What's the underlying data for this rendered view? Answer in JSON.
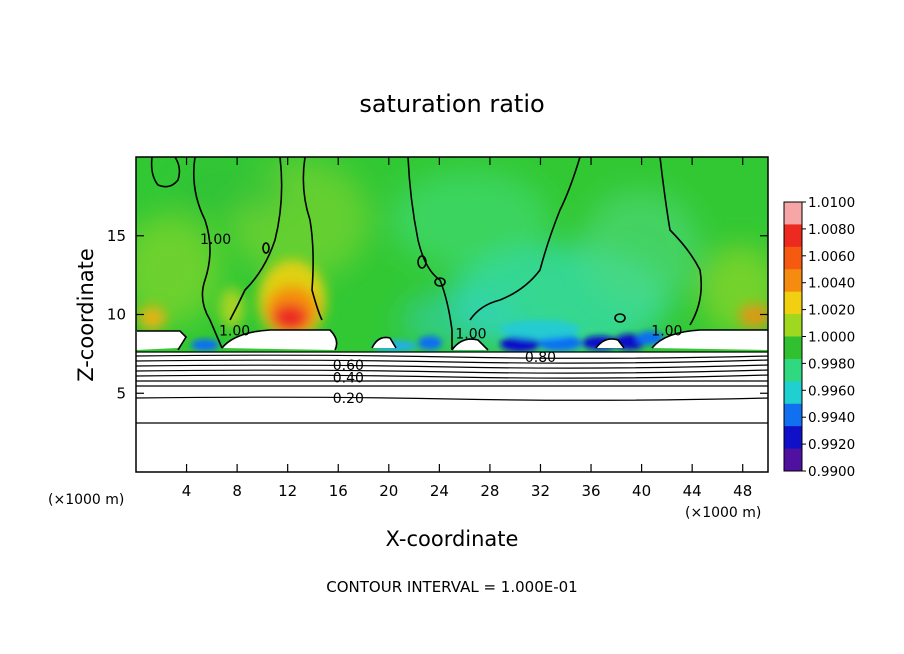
{
  "chart_data": {
    "type": "heatmap",
    "title": "saturation ratio",
    "xlabel": "X-coordinate",
    "ylabel": "Z-coordinate",
    "x_unit": "(×1000 m)",
    "y_unit": "(×1000 m)",
    "xlim": [
      0,
      50
    ],
    "ylim": [
      0,
      20
    ],
    "x_ticks": [
      4,
      8,
      12,
      16,
      20,
      24,
      28,
      32,
      36,
      40,
      44,
      48
    ],
    "y_ticks": [
      5,
      10,
      15
    ],
    "colorbar": {
      "min": 0.99,
      "max": 1.01,
      "tick_labels": [
        "1.0100",
        "1.0080",
        "1.0060",
        "1.0040",
        "1.0020",
        "1.0000",
        "0.9980",
        "0.9960",
        "0.9940",
        "0.9920",
        "0.9900"
      ],
      "colors": [
        "#f6a6a6",
        "#ec2a20",
        "#f55a10",
        "#f58c10",
        "#f0d010",
        "#a0d820",
        "#30c030",
        "#30d880",
        "#20d0d0",
        "#1070f0",
        "#1010c8",
        "#5010a0"
      ]
    },
    "contour_labels": [
      {
        "text": "1.00",
        "x": 7.8,
        "z": 9.0
      },
      {
        "text": "1.00",
        "x": 6.3,
        "z": 14.8
      },
      {
        "text": "1.00",
        "x": 26.5,
        "z": 8.8
      },
      {
        "text": "1.00",
        "x": 42.0,
        "z": 9.0
      },
      {
        "text": "0.80",
        "x": 32.0,
        "z": 7.3
      },
      {
        "text": "0.60",
        "x": 16.8,
        "z": 6.8
      },
      {
        "text": "0.40",
        "x": 16.8,
        "z": 6.0
      },
      {
        "text": "0.20",
        "x": 16.8,
        "z": 4.7
      }
    ],
    "contour_levels": [
      0.2,
      0.4,
      0.6,
      0.8,
      1.0
    ],
    "footnote": "CONTOUR INTERVAL = 1.000E-01"
  }
}
